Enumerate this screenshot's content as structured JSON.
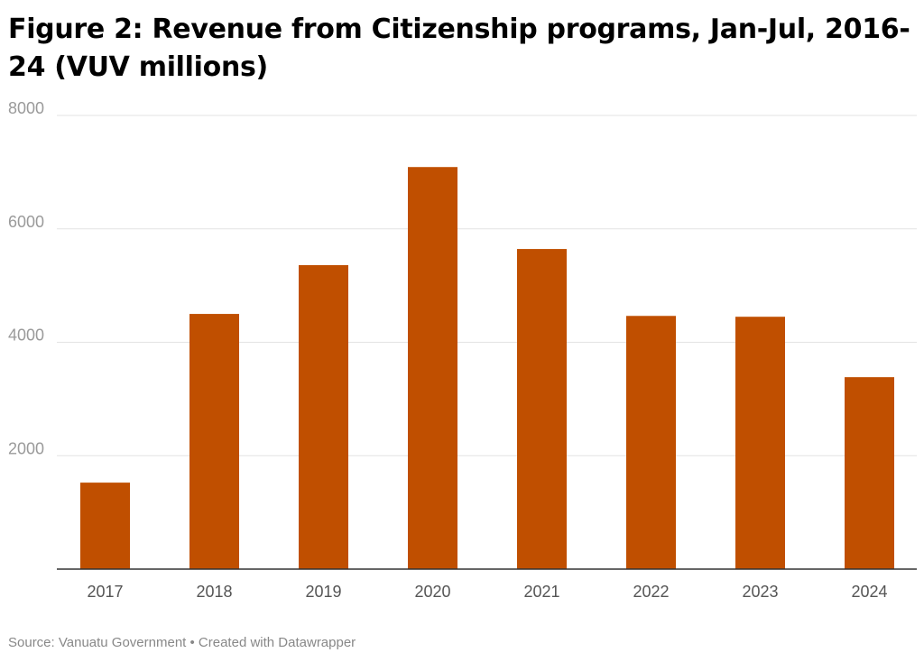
{
  "chart_data": {
    "type": "bar",
    "title": "Figure 2: Revenue from Citizenship programs, Jan-Jul, 2016-24 (VUV millions)",
    "xlabel": "",
    "ylabel": "",
    "categories": [
      "2017",
      "2018",
      "2019",
      "2020",
      "2021",
      "2022",
      "2023",
      "2024"
    ],
    "values": [
      1525,
      4500,
      5360,
      7090,
      5645,
      4465,
      4450,
      3385
    ],
    "ylim": [
      0,
      8000
    ],
    "yticks": [
      2000,
      4000,
      6000,
      8000
    ],
    "grid": true,
    "legend": "none",
    "bar_color": "#c04f00"
  },
  "footer": {
    "source": "Source: Vanuatu Government • Created with Datawrapper"
  }
}
